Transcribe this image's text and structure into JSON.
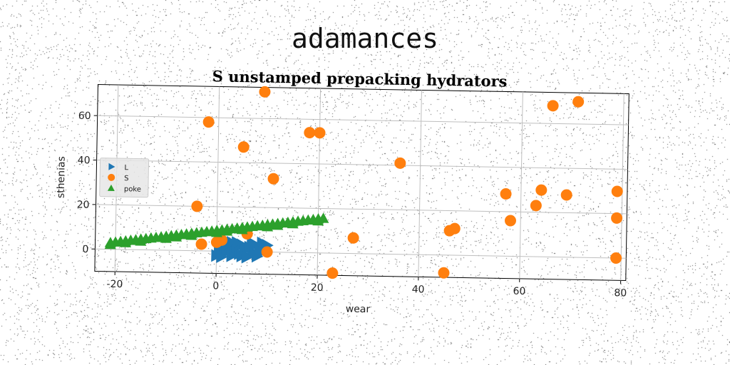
{
  "suptitle": "adamances",
  "chart_data": {
    "type": "scatter",
    "title": "S unstamped prepacking hydrators",
    "xlabel": "wear",
    "ylabel": "sthenias",
    "xlim": [
      -24,
      81
    ],
    "ylim": [
      -10,
      74
    ],
    "xticks": [
      -20,
      0,
      20,
      40,
      60,
      80
    ],
    "yticks": [
      0,
      20,
      40,
      60
    ],
    "grid": true,
    "legend_position": "center-left",
    "series": [
      {
        "name": "L",
        "marker": "triangle-right",
        "color": "#1f77b4",
        "points": [
          [
            0,
            -2
          ],
          [
            0.5,
            0
          ],
          [
            1,
            2
          ],
          [
            1.5,
            -1
          ],
          [
            2,
            1
          ],
          [
            2.5,
            3
          ],
          [
            3,
            -2
          ],
          [
            3.5,
            0
          ],
          [
            4,
            2
          ],
          [
            4.5,
            -1
          ],
          [
            5,
            3
          ],
          [
            5.5,
            1
          ],
          [
            6,
            -2
          ],
          [
            6.5,
            2
          ],
          [
            7,
            0
          ],
          [
            7.5,
            3
          ],
          [
            8,
            -1
          ],
          [
            8.5,
            1
          ],
          [
            9,
            4
          ],
          [
            9.5,
            2
          ],
          [
            10,
            3
          ],
          [
            3,
            4
          ],
          [
            5,
            -2
          ],
          [
            7,
            4
          ],
          [
            1,
            -2.5
          ],
          [
            6,
            -2.5
          ],
          [
            8,
            -2
          ],
          [
            9,
            0
          ],
          [
            4,
            4
          ],
          [
            2,
            3
          ]
        ]
      },
      {
        "name": "S",
        "marker": "circle",
        "color": "#ff7f0e",
        "points": [
          [
            9,
            72
          ],
          [
            66,
            68
          ],
          [
            71,
            70
          ],
          [
            -2,
            58
          ],
          [
            18,
            54
          ],
          [
            20,
            54
          ],
          [
            5,
            47
          ],
          [
            36,
            41
          ],
          [
            11,
            33
          ],
          [
            57,
            28
          ],
          [
            64,
            30
          ],
          [
            69,
            28
          ],
          [
            79,
            30
          ],
          [
            63,
            23
          ],
          [
            58,
            16
          ],
          [
            79,
            18
          ],
          [
            -4,
            20
          ],
          [
            46,
            11
          ],
          [
            47,
            12
          ],
          [
            27,
            7
          ],
          [
            -3,
            3
          ],
          [
            0,
            4
          ],
          [
            10,
            0
          ],
          [
            79,
            0
          ],
          [
            45,
            -8
          ],
          [
            23,
            -9
          ],
          [
            1,
            5
          ],
          [
            6,
            8
          ]
        ]
      },
      {
        "name": "poke",
        "marker": "triangle-up",
        "color": "#2ca02c",
        "points": [
          [
            -21,
            3
          ],
          [
            -20,
            3.3
          ],
          [
            -19,
            3.6
          ],
          [
            -18,
            3.9
          ],
          [
            -17,
            4.2
          ],
          [
            -16,
            4.5
          ],
          [
            -15,
            4.8
          ],
          [
            -14,
            5.1
          ],
          [
            -13,
            5.4
          ],
          [
            -12,
            5.7
          ],
          [
            -11,
            6
          ],
          [
            -10,
            6.3
          ],
          [
            -9,
            6.6
          ],
          [
            -8,
            6.9
          ],
          [
            -7,
            7.2
          ],
          [
            -6,
            7.5
          ],
          [
            -5,
            7.8
          ],
          [
            -4,
            8.1
          ],
          [
            -3,
            8.4
          ],
          [
            -2,
            8.7
          ],
          [
            -1,
            9
          ],
          [
            0,
            9.3
          ],
          [
            1,
            9.6
          ],
          [
            2,
            9.9
          ],
          [
            3,
            10.2
          ],
          [
            4,
            10.5
          ],
          [
            5,
            10.8
          ],
          [
            6,
            11.1
          ],
          [
            7,
            11.4
          ],
          [
            8,
            11.7
          ],
          [
            9,
            12
          ],
          [
            10,
            12.3
          ],
          [
            11,
            12.6
          ],
          [
            12,
            12.9
          ],
          [
            13,
            13.2
          ],
          [
            14,
            13.5
          ],
          [
            15,
            13.8
          ],
          [
            16,
            14.1
          ],
          [
            17,
            14.4
          ],
          [
            18,
            14.7
          ],
          [
            19,
            15
          ],
          [
            20,
            15.3
          ],
          [
            21,
            15.6
          ],
          [
            -21,
            2.2
          ],
          [
            -15,
            3.9
          ],
          [
            -10,
            5.4
          ],
          [
            -5,
            6.9
          ],
          [
            0,
            8.4
          ],
          [
            5,
            9.9
          ],
          [
            10,
            11.4
          ],
          [
            15,
            12.9
          ],
          [
            20,
            14.4
          ],
          [
            -18,
            3.1
          ],
          [
            -8,
            6.1
          ],
          [
            2,
            9.1
          ],
          [
            12,
            12.1
          ]
        ]
      }
    ]
  }
}
